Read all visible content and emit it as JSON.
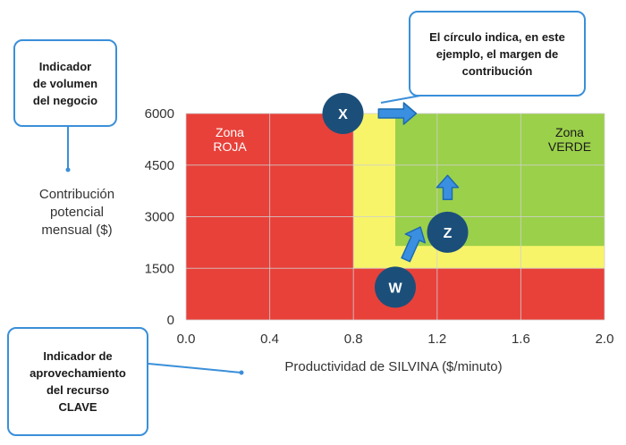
{
  "chart_data": {
    "type": "area",
    "x_ticks": [
      "0.0",
      "0.4",
      "0.8",
      "1.2",
      "1.6",
      "2.0"
    ],
    "y_ticks": [
      "0",
      "1500",
      "3000",
      "4500",
      "6000"
    ],
    "xlim": [
      0,
      2.0
    ],
    "ylim": [
      0,
      6000
    ],
    "xlabel": "Productividad de SILVINA ($/minuto)",
    "ylabel": [
      "Contribución",
      "potencial",
      "mensual ($)"
    ],
    "grid": true,
    "zones": [
      {
        "name": "roja",
        "label": [
          "Zona",
          "ROJA"
        ],
        "color": "#e8413a",
        "x": [
          0,
          2.0
        ],
        "y": [
          0,
          6000
        ]
      },
      {
        "name": "amarilla",
        "color": "#f7f46a",
        "x": [
          0.8,
          2.0
        ],
        "y": [
          1500,
          6000
        ]
      },
      {
        "name": "verde",
        "label": [
          "Zona",
          "VERDE"
        ],
        "color": "#9bd04a",
        "x": [
          1.0,
          2.0
        ],
        "y": [
          2150,
          6000
        ]
      }
    ],
    "points": [
      {
        "label": "X",
        "x": 0.75,
        "y": 6000
      },
      {
        "label": "W",
        "x": 1.0,
        "y": 950
      },
      {
        "label": "Z",
        "x": 1.25,
        "y": 2550
      }
    ],
    "arrows": [
      {
        "name": "arrow-x",
        "from": [
          0.92,
          6000
        ],
        "to": [
          1.1,
          6000
        ]
      },
      {
        "name": "arrow-w",
        "from": [
          1.05,
          1750
        ],
        "to": [
          1.12,
          2700
        ]
      },
      {
        "name": "arrow-z",
        "from": [
          1.25,
          3500
        ],
        "to": [
          1.25,
          4200
        ]
      }
    ]
  },
  "callouts": {
    "volume": [
      "Indicador",
      "de volumen",
      "del negocio"
    ],
    "clave": [
      "Indicador de",
      "aprovechamiento",
      "del recurso",
      "CLAVE"
    ],
    "circle": [
      "El círculo indica, en este",
      "ejemplo, el margen de",
      "contribución"
    ]
  },
  "colors": {
    "point_fill": "#1b4f7a",
    "arrow_fill": "#3b8fe0",
    "arrow_stroke": "#1d6bb3",
    "callout_border": "#3a8fd9",
    "grid": "#cfcfcf"
  }
}
